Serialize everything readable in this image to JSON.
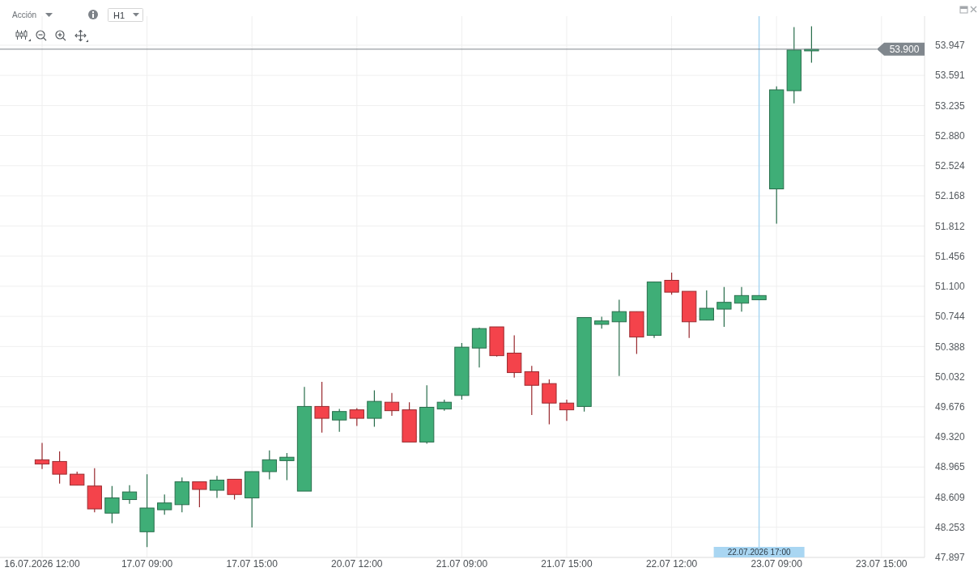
{
  "chart_data": {
    "type": "candlestick",
    "title": "Acción",
    "annotations": [
      "H1",
      "22.07.2026 17:00"
    ],
    "categories": [
      "16.07.2026 12:00",
      null,
      null,
      null,
      null,
      null,
      "17.07 09:00",
      null,
      null,
      null,
      null,
      null,
      "17.07 15:00",
      null,
      null,
      null,
      null,
      null,
      "20.07 12:00",
      null,
      null,
      null,
      null,
      null,
      "21.07 09:00",
      null,
      null,
      null,
      null,
      null,
      "21.07 15:00",
      null,
      null,
      null,
      null,
      null,
      "22.07 12:00",
      null,
      null,
      null,
      null,
      null,
      "23.07 09:00",
      null,
      null,
      null,
      null,
      null,
      "23.07 15:00"
    ],
    "ohlc": [
      [
        49.05,
        49.25,
        48.94,
        49.0
      ],
      [
        49.03,
        49.15,
        48.77,
        48.88
      ],
      [
        48.88,
        48.91,
        48.75,
        48.75
      ],
      [
        48.74,
        48.95,
        48.43,
        48.47
      ],
      [
        48.42,
        48.74,
        48.3,
        48.6
      ],
      [
        48.58,
        48.75,
        48.53,
        48.67
      ],
      [
        48.2,
        48.88,
        48.02,
        48.48
      ],
      [
        48.46,
        48.64,
        48.4,
        48.54
      ],
      [
        48.52,
        48.84,
        48.43,
        48.79
      ],
      [
        48.79,
        48.79,
        48.49,
        48.7
      ],
      [
        48.69,
        48.86,
        48.6,
        48.81
      ],
      [
        48.82,
        48.82,
        48.58,
        48.64
      ],
      [
        48.6,
        48.91,
        48.25,
        48.91
      ],
      [
        48.91,
        49.16,
        48.82,
        49.05
      ],
      [
        49.04,
        49.13,
        48.81,
        49.08
      ],
      [
        48.68,
        49.91,
        48.68,
        49.68
      ],
      [
        49.68,
        49.97,
        49.37,
        49.54
      ],
      [
        49.52,
        49.65,
        49.38,
        49.62
      ],
      [
        49.64,
        49.66,
        49.45,
        49.54
      ],
      [
        49.54,
        49.87,
        49.44,
        49.74
      ],
      [
        49.73,
        49.84,
        49.57,
        49.63
      ],
      [
        49.64,
        49.73,
        49.26,
        49.26
      ],
      [
        49.26,
        49.93,
        49.24,
        49.67
      ],
      [
        49.65,
        49.76,
        49.63,
        49.73
      ],
      [
        49.81,
        50.43,
        49.76,
        50.38
      ],
      [
        50.37,
        50.61,
        50.14,
        50.6
      ],
      [
        50.62,
        50.62,
        50.27,
        50.28
      ],
      [
        50.31,
        50.52,
        50.02,
        50.08
      ],
      [
        50.09,
        50.16,
        49.58,
        49.93
      ],
      [
        49.95,
        50.0,
        49.47,
        49.72
      ],
      [
        49.72,
        49.76,
        49.51,
        49.64
      ],
      [
        49.68,
        50.73,
        49.62,
        50.73
      ],
      [
        50.65,
        50.74,
        50.6,
        50.69
      ],
      [
        50.68,
        50.94,
        50.04,
        50.8
      ],
      [
        50.8,
        50.8,
        50.3,
        50.5
      ],
      [
        50.52,
        51.15,
        50.49,
        51.15
      ],
      [
        51.17,
        51.26,
        51.0,
        51.03
      ],
      [
        51.04,
        51.04,
        50.49,
        50.68
      ],
      [
        50.7,
        51.05,
        50.7,
        50.84
      ],
      [
        50.83,
        51.09,
        50.62,
        50.91
      ],
      [
        50.9,
        51.09,
        50.8,
        50.99
      ],
      [
        50.94,
        50.99,
        50.94,
        50.99
      ],
      [
        52.25,
        53.46,
        51.84,
        53.42
      ],
      [
        53.41,
        54.16,
        53.26,
        53.89
      ],
      [
        53.88,
        54.17,
        53.74,
        53.9
      ],
      null,
      null,
      null,
      null
    ],
    "colors": [
      "#f4434b",
      "#f4434b",
      "#f4434b",
      "#f4434b",
      "#3fae77",
      "#3fae77",
      "#3fae77",
      "#3fae77",
      "#3fae77",
      "#f4434b",
      "#3fae77",
      "#f4434b",
      "#3fae77",
      "#3fae77",
      "#3fae77",
      "#3fae77",
      "#f4434b",
      "#3fae77",
      "#f4434b",
      "#3fae77",
      "#f4434b",
      "#f4434b",
      "#3fae77",
      "#3fae77",
      "#3fae77",
      "#3fae77",
      "#f4434b",
      "#f4434b",
      "#f4434b",
      "#f4434b",
      "#f4434b",
      "#3fae77",
      "#3fae77",
      "#3fae77",
      "#f4434b",
      "#3fae77",
      "#f4434b",
      "#f4434b",
      "#3fae77",
      "#3fae77",
      "#3fae77",
      "#3fae77",
      "#3fae77",
      "#3fae77",
      "#3fae77",
      null,
      null,
      null,
      null
    ],
    "ylim": [
      47.897,
      54.29
    ],
    "yticks": [
      47.897,
      48.253,
      48.609,
      48.965,
      {
        "value": 49.32,
        "label": "49.320"
      },
      49.676,
      50.032,
      50.388,
      50.744,
      {
        "value": 51.1,
        "label": "51.100"
      },
      51.456,
      51.812,
      52.168,
      52.524,
      {
        "value": 52.88,
        "label": "52.880"
      },
      53.235,
      53.591,
      53.947
    ],
    "grid": true,
    "ref_lines": [
      {
        "axis": "y",
        "value": 53.9,
        "label": "53.900",
        "color": "#80878d"
      }
    ]
  }
}
